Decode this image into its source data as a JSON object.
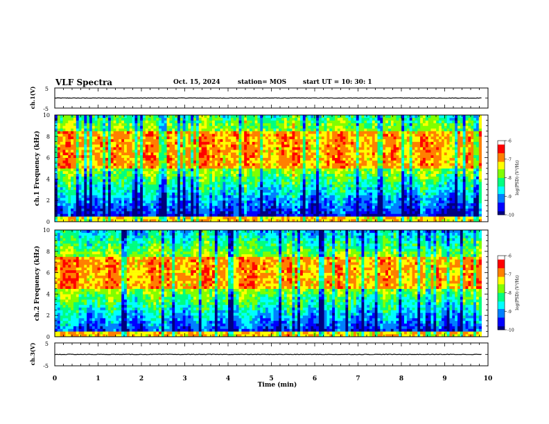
{
  "header": {
    "title": "VLF Spectra",
    "date": "Oct. 15, 2024",
    "station": "station= MOS",
    "start_ut": "start UT = 10: 30: 1"
  },
  "colors": {
    "colormap": [
      "#00007f",
      "#0000ff",
      "#0080ff",
      "#00ffff",
      "#00ff80",
      "#80ff00",
      "#ffff00",
      "#ff8000",
      "#ff0000",
      "#ffffff"
    ],
    "waveform": "#000000",
    "axis": "#000000"
  },
  "chart_data": [
    {
      "type": "line",
      "name": "ch1-waveform",
      "ylabel": "ch.1(V)",
      "ylim": [
        -5,
        5
      ],
      "yticks": [
        "5",
        "-5"
      ],
      "x_range_min": [
        0,
        9.85
      ],
      "level_v": 0
    },
    {
      "type": "heatmap",
      "name": "ch1-spectrogram",
      "ylabel": "ch.1 Frequency (kHz)",
      "xlim": [
        0,
        10
      ],
      "ylim": [
        0,
        10
      ],
      "yticks": [
        "0",
        "2",
        "4",
        "6",
        "8",
        "10"
      ],
      "data_x_range": [
        0,
        9.85
      ],
      "band_khz": [
        4.5,
        9.2
      ],
      "band_level": -7,
      "background_level": -9.3,
      "colorbar": {
        "label": "log(PSD) (V²/Hz)",
        "range": [
          -10,
          -6
        ],
        "ticks": [
          "-6",
          "-7",
          "-8",
          "-9",
          "-10"
        ]
      }
    },
    {
      "type": "heatmap",
      "name": "ch2-spectrogram",
      "ylabel": "ch.2 Frequency (kHz)",
      "xlim": [
        0,
        10
      ],
      "ylim": [
        0,
        10
      ],
      "yticks": [
        "0",
        "2",
        "4",
        "6",
        "8",
        "10"
      ],
      "data_x_range": [
        0,
        9.85
      ],
      "band_khz": [
        4.0,
        8.0
      ],
      "band_level": -7,
      "background_level": -9.3,
      "colorbar": {
        "label": "log(PSD) (V²/Hz)",
        "range": [
          -10,
          -6
        ],
        "ticks": [
          "-6",
          "-7",
          "-8",
          "-9",
          "-10"
        ]
      }
    },
    {
      "type": "line",
      "name": "ch3-waveform",
      "ylabel": "ch.3(V)",
      "ylim": [
        -5,
        5
      ],
      "yticks": [
        "5",
        "-5"
      ],
      "xlabel": "Time (min)",
      "xlim": [
        0,
        10
      ],
      "xticks": [
        "0",
        "1",
        "2",
        "3",
        "4",
        "5",
        "6",
        "7",
        "8",
        "9",
        "10"
      ],
      "level_v": 0
    }
  ]
}
